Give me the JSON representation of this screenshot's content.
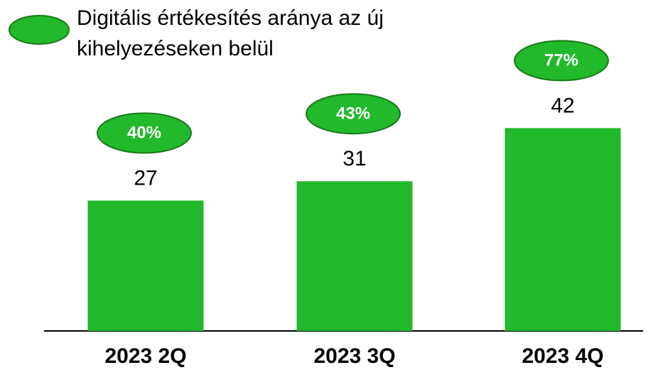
{
  "chart_data": {
    "type": "bar",
    "categories": [
      "2023 2Q",
      "2023 3Q",
      "2023 4Q"
    ],
    "series": [
      {
        "values": [
          27,
          31,
          42
        ],
        "color": "#22b92c"
      },
      {
        "name": "Digitális értékesítés aránya az új kihelyezéseken belül",
        "values": [
          40,
          43,
          77
        ],
        "value_labels": [
          "40%",
          "43%",
          "77%"
        ],
        "color": "#22b92c"
      }
    ]
  }
}
